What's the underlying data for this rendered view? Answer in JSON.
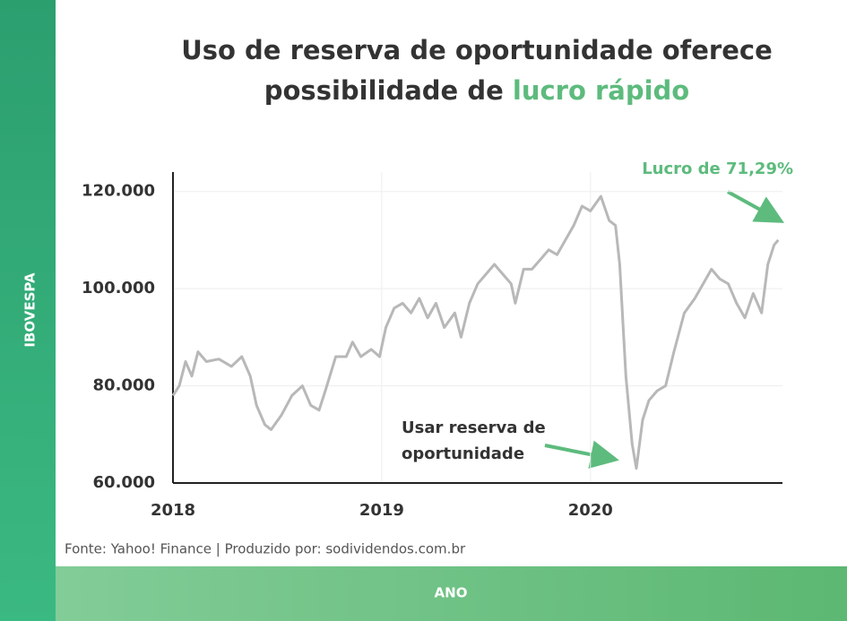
{
  "chart_data": {
    "type": "line",
    "title": "Uso de reserva de oportunidade oferece",
    "title_line2": "possibilidade de",
    "title_highlight": "lucro rápido",
    "y_axis_label": "IBOVESPA",
    "x_axis_label": "ANO",
    "source": "Fonte: Yahoo! Finance | Produzido por: sodividendos.com.br",
    "annotations": [
      "Lucro de 71,29%",
      "Usar reserva de",
      "oportunidade"
    ],
    "grid": true,
    "xlim": [
      2018,
      2020.92
    ],
    "xticks": [
      2018,
      2019,
      2020
    ],
    "ylim": [
      60000,
      124000
    ],
    "yticks": [
      {
        "value": 60000,
        "label": "60.000"
      },
      {
        "value": 80000,
        "label": "80.000"
      },
      {
        "value": 100000,
        "label": "100.000"
      },
      {
        "value": 120000,
        "label": "120.000"
      }
    ],
    "series": [
      {
        "color": "#b8b8b8",
        "x": [
          2018.0,
          2018.03,
          2018.06,
          2018.09,
          2018.12,
          2018.16,
          2018.22,
          2018.28,
          2018.33,
          2018.37,
          2018.4,
          2018.44,
          2018.47,
          2018.52,
          2018.57,
          2018.62,
          2018.66,
          2018.7,
          2018.73,
          2018.78,
          2018.83,
          2018.86,
          2018.9,
          2018.95,
          2018.99,
          2019.02,
          2019.06,
          2019.1,
          2019.14,
          2019.18,
          2019.22,
          2019.26,
          2019.3,
          2019.35,
          2019.38,
          2019.42,
          2019.46,
          2019.5,
          2019.54,
          2019.58,
          2019.62,
          2019.64,
          2019.68,
          2019.72,
          2019.76,
          2019.8,
          2019.84,
          2019.88,
          2019.92,
          2019.96,
          2020.0,
          2020.05,
          2020.09,
          2020.12,
          2020.14,
          2020.17,
          2020.2,
          2020.22,
          2020.25,
          2020.28,
          2020.32,
          2020.36,
          2020.4,
          2020.45,
          2020.5,
          2020.54,
          2020.58,
          2020.62,
          2020.66,
          2020.7,
          2020.74,
          2020.78,
          2020.82,
          2020.85,
          2020.88,
          2020.9
        ],
        "values": [
          78000,
          80000,
          85000,
          82000,
          87000,
          85000,
          85500,
          84000,
          86000,
          82000,
          76000,
          72000,
          71000,
          74000,
          78000,
          80000,
          76000,
          75000,
          79000,
          86000,
          86000,
          89000,
          86000,
          87500,
          86000,
          92000,
          96000,
          97000,
          95000,
          98000,
          94000,
          97000,
          92000,
          95000,
          90000,
          97000,
          101000,
          103000,
          105000,
          103000,
          101000,
          97000,
          104000,
          104000,
          106000,
          108000,
          107000,
          110000,
          113000,
          117000,
          116000,
          119000,
          114000,
          113000,
          105000,
          82000,
          68000,
          63000,
          73000,
          77000,
          79000,
          80000,
          87000,
          95000,
          98000,
          101000,
          104000,
          102000,
          101000,
          97000,
          94000,
          99000,
          95000,
          105000,
          109000,
          110000
        ]
      }
    ]
  }
}
